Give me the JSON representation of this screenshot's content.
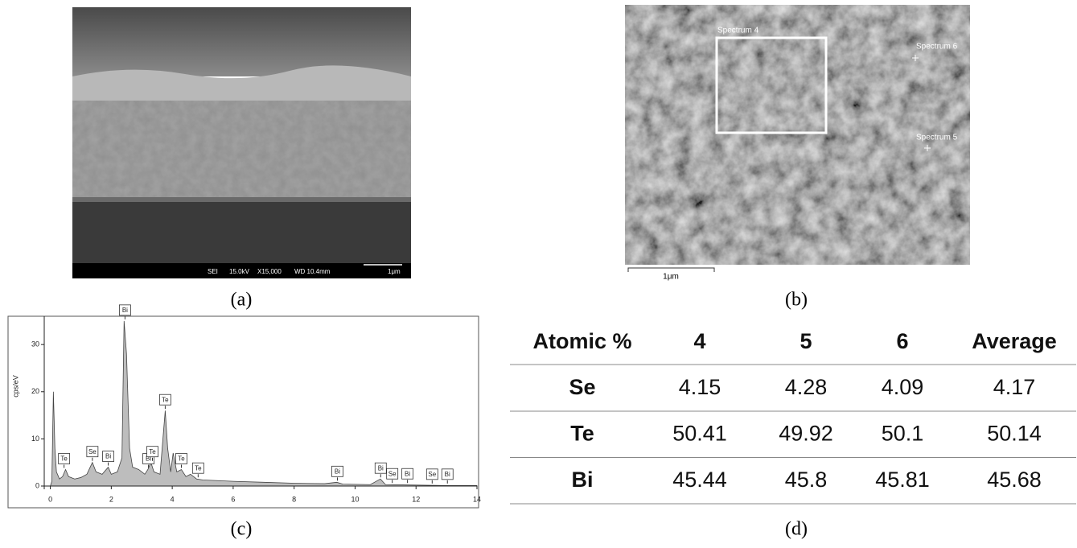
{
  "panels": {
    "a": {
      "label": "(a)",
      "info": [
        "SEI",
        "15.0kV",
        "X15,000",
        "WD 10.4mm",
        "1μm"
      ]
    },
    "b": {
      "label": "(b)",
      "spectra": [
        "Spectrum 4",
        "Spectrum 5",
        "Spectrum 6"
      ],
      "scale": "1μm"
    },
    "c": {
      "label": "(c)"
    },
    "d": {
      "label": "(d)"
    }
  },
  "chart_data": {
    "type": "area",
    "y_label": "cps/eV",
    "color": "#bdbdbd",
    "x": [
      0.0,
      0.05,
      0.1,
      0.15,
      0.2,
      0.3,
      0.4,
      0.5,
      0.6,
      0.8,
      1.0,
      1.2,
      1.38,
      1.5,
      1.7,
      1.9,
      2.0,
      2.2,
      2.35,
      2.42,
      2.5,
      2.6,
      2.7,
      2.9,
      3.1,
      3.2,
      3.3,
      3.4,
      3.6,
      3.77,
      3.85,
      3.95,
      4.03,
      4.15,
      4.3,
      4.45,
      4.6,
      4.8,
      5.0,
      6,
      7,
      8,
      9,
      9.4,
      9.6,
      10.5,
      10.83,
      11,
      12,
      13,
      14
    ],
    "values": [
      0,
      1,
      20,
      8,
      3,
      1.5,
      2,
      3.5,
      2,
      1.5,
      1.8,
      2.5,
      5,
      3,
      2.5,
      4,
      2.5,
      3,
      6,
      35,
      28,
      8,
      4,
      3.5,
      2.5,
      3.5,
      5,
      3,
      2.5,
      16,
      8,
      3,
      7,
      3,
      3.5,
      2,
      2.5,
      1.5,
      1.3,
      1,
      0.8,
      0.6,
      0.5,
      0.8,
      0.4,
      0.3,
      1.5,
      0.3,
      0.2,
      0.1,
      0.1
    ],
    "xlim": [
      -0.2,
      14
    ],
    "ylim": [
      0,
      36
    ],
    "xticks": [
      0,
      2,
      4,
      6,
      8,
      10,
      12,
      14
    ],
    "yticks": [
      0,
      10,
      20,
      30
    ],
    "annotations": [
      {
        "label": "Te",
        "x": 0.45,
        "y": 3.5
      },
      {
        "label": "Se",
        "x": 1.38,
        "y": 5
      },
      {
        "label": "Bi",
        "x": 1.9,
        "y": 4
      },
      {
        "label": "Bi",
        "x": 2.45,
        "y": 35
      },
      {
        "label": "Bi",
        "x": 3.22,
        "y": 3.5
      },
      {
        "label": "Te",
        "x": 3.35,
        "y": 5
      },
      {
        "label": "Te",
        "x": 3.77,
        "y": 16
      },
      {
        "label": "Te",
        "x": 4.3,
        "y": 3.5
      },
      {
        "label": "Te",
        "x": 4.85,
        "y": 1.5
      },
      {
        "label": "Bi",
        "x": 9.42,
        "y": 0.8
      },
      {
        "label": "Bi",
        "x": 10.84,
        "y": 1.5
      },
      {
        "label": "Se",
        "x": 11.22,
        "y": 0.3
      },
      {
        "label": "Bi",
        "x": 11.72,
        "y": 0.3
      },
      {
        "label": "Se",
        "x": 12.53,
        "y": 0.2
      },
      {
        "label": "Bi",
        "x": 13.03,
        "y": 0.2
      }
    ]
  },
  "table": {
    "header": [
      "Atomic %",
      "4",
      "5",
      "6",
      "Average"
    ],
    "rows": [
      [
        "Se",
        "4.15",
        "4.28",
        "4.09",
        "4.17"
      ],
      [
        "Te",
        "50.41",
        "49.92",
        "50.1",
        "50.14"
      ],
      [
        "Bi",
        "45.44",
        "45.8",
        "45.81",
        "45.68"
      ]
    ]
  }
}
